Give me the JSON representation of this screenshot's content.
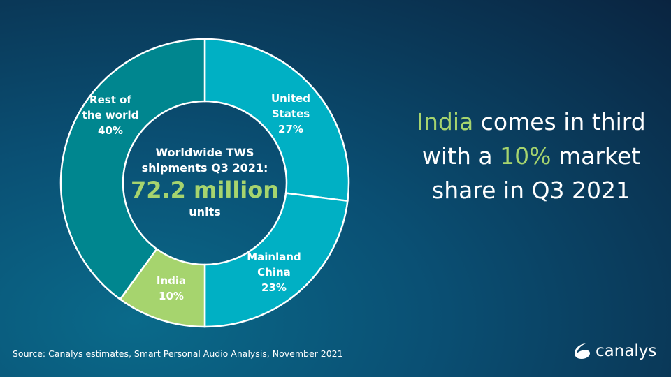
{
  "chart_data": {
    "type": "pie",
    "variant": "donut",
    "categories": [
      "United States",
      "Mainland China",
      "India",
      "Rest of the world"
    ],
    "label_lines": [
      [
        "United",
        "States"
      ],
      [
        "Mainland",
        "China"
      ],
      [
        "India"
      ],
      [
        "Rest of",
        "the world"
      ]
    ],
    "values": [
      27,
      23,
      10,
      40
    ],
    "value_labels": [
      "27%",
      "23%",
      "10%",
      "40%"
    ],
    "colors": [
      "#00b0c4",
      "#00b0c4",
      "#a6d46e",
      "#00868f"
    ],
    "start": "12 o'clock, clockwise",
    "center_text": {
      "line1": "Worldwide TWS",
      "line2": "shipments Q3 2021:",
      "value": "72.2 million",
      "line3": "units"
    }
  },
  "headline": {
    "p1": "India",
    "p2": " comes in third with a ",
    "p3": "10%",
    "p4": " market share in Q3 2021",
    "accent": "#a6d46e"
  },
  "source": "Source: Canalys estimates, Smart Personal Audio Analysis, November 2021",
  "logo": {
    "text": "canalys",
    "icon": "canalys-swoosh-icon"
  }
}
